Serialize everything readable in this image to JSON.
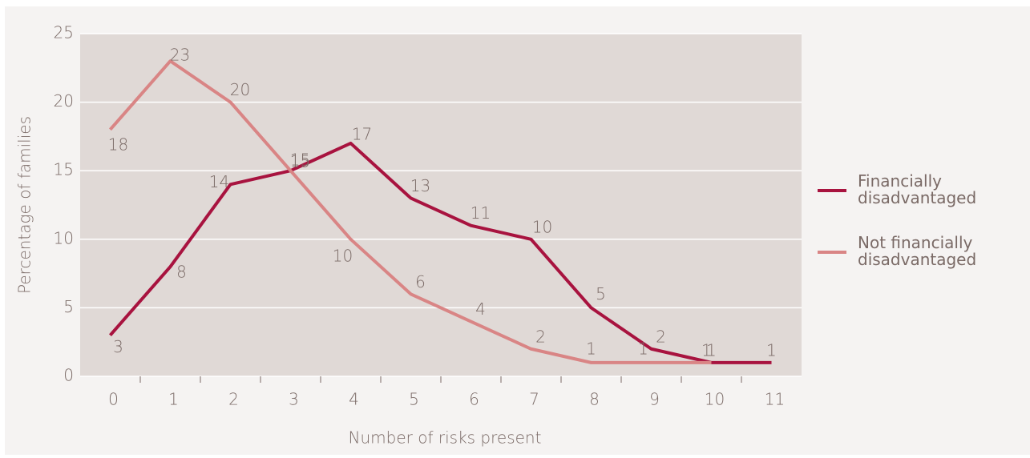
{
  "chart_data": {
    "type": "line",
    "x_label": "Number of risks present",
    "y_label": "Percentage of families",
    "categories": [
      "0",
      "1",
      "2",
      "3",
      "4",
      "5",
      "6",
      "7",
      "8",
      "9",
      "10",
      "11"
    ],
    "series": [
      {
        "name": "Financially disadvantaged",
        "color": "#a8133f",
        "values": [
          3,
          8,
          14,
          15,
          17,
          13,
          11,
          10,
          5,
          2,
          1,
          1
        ]
      },
      {
        "name": "Not financially disadvantaged",
        "color": "#d98585",
        "values": [
          18,
          23,
          20,
          15,
          10,
          6,
          4,
          2,
          1,
          1,
          1,
          null
        ]
      }
    ],
    "ylim": [
      0,
      25
    ],
    "yticks": [
      0,
      5,
      10,
      15,
      20,
      25
    ],
    "grid": true,
    "legend": "right"
  }
}
